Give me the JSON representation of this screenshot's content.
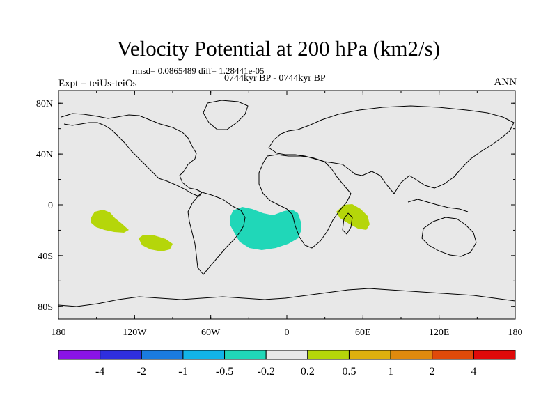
{
  "title": "Velocity Potential at 200 hPa (km2/s)",
  "stats": "rmsd= 0.0865489 diff= 1.28441e-05",
  "period": "0744kyr BP - 0744kyr BP",
  "expt": "Expt = teiUs-teiOs",
  "season": "ANN",
  "map": {
    "background_color": "#e8e8e8",
    "lat_labels": [
      "80N",
      "40N",
      "0",
      "40S",
      "80S"
    ],
    "lon_labels": [
      "180",
      "120W",
      "60W",
      "0",
      "60E",
      "120E",
      "180"
    ],
    "anomalies": [
      {
        "name": "south-atlantic-negative",
        "level": "-0.5 to -0.2",
        "color": "#20d7b8"
      },
      {
        "name": "southeast-pacific-positive-west",
        "level": "0.2 to 0.5",
        "color": "#b5d60a"
      },
      {
        "name": "southeast-pacific-positive-east",
        "level": "0.2 to 0.5",
        "color": "#b5d60a"
      },
      {
        "name": "east-africa-positive",
        "level": "0.2 to 0.5",
        "color": "#b5d60a"
      }
    ]
  },
  "colorbar": {
    "colors": [
      "#8a14e6",
      "#2f2fde",
      "#1a7be0",
      "#12b4e8",
      "#20d7b8",
      "#e8e8e8",
      "#b5d60a",
      "#ddb00e",
      "#e08a0e",
      "#e04a0a",
      "#e00a0a"
    ],
    "labels": [
      "-4",
      "-2",
      "-1",
      "-0.5",
      "-0.2",
      "0.2",
      "0.5",
      "1",
      "2",
      "4"
    ]
  }
}
